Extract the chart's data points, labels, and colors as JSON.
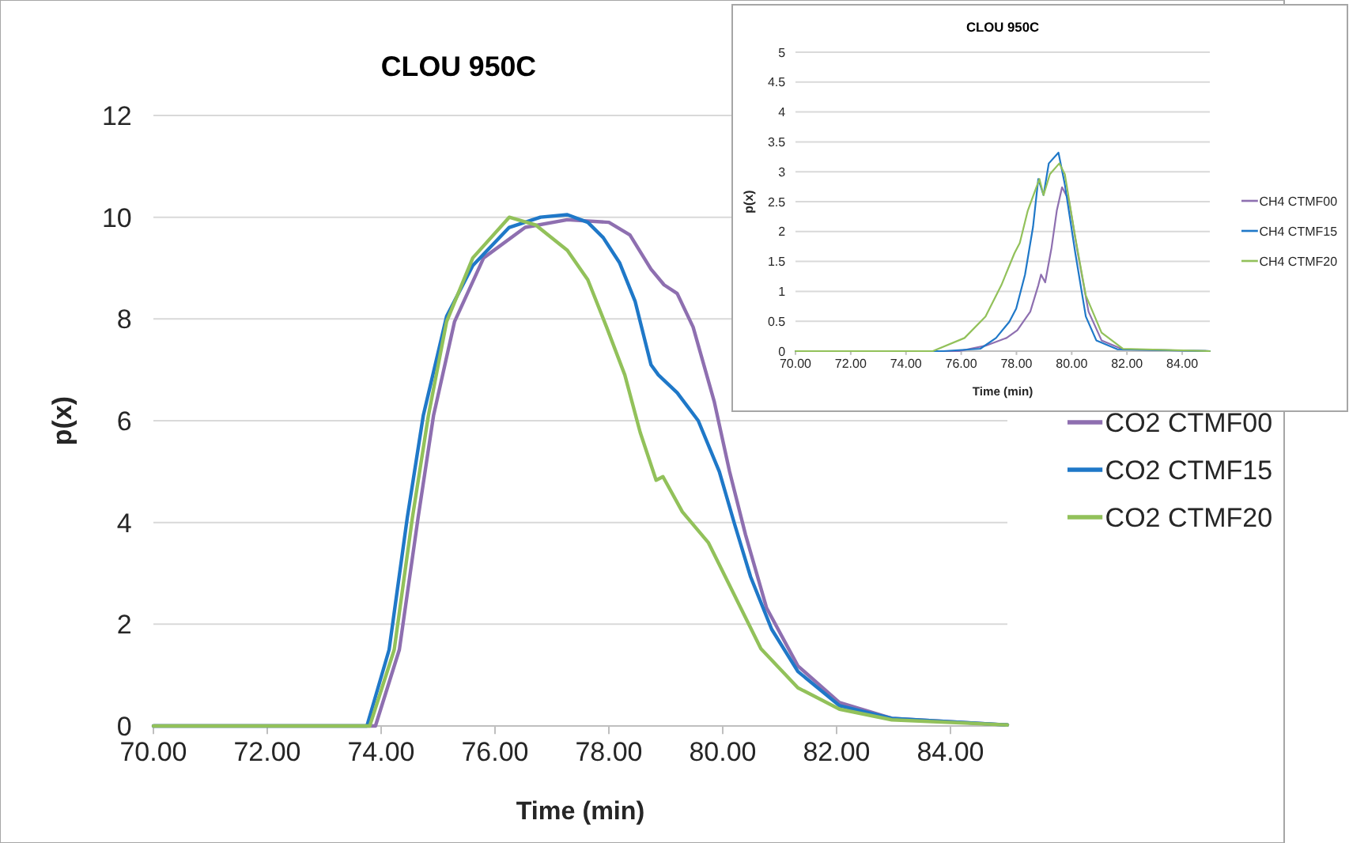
{
  "chart_data": [
    {
      "type": "line",
      "title": "CLOU 950C",
      "xlabel": "Time (min)",
      "ylabel": "p(x)",
      "xlim": [
        70,
        85
      ],
      "xticks": [
        {
          "value": 70,
          "label": "70.00"
        },
        {
          "value": 72,
          "label": "72.00"
        },
        {
          "value": 74,
          "label": "74.00"
        },
        {
          "value": 76,
          "label": "76.00"
        },
        {
          "value": 78,
          "label": "78.00"
        },
        {
          "value": 80,
          "label": "80.00"
        },
        {
          "value": 82,
          "label": "82.00"
        },
        {
          "value": 84,
          "label": "84.00"
        }
      ],
      "ylim": [
        0,
        12
      ],
      "yticks": [
        0,
        2,
        4,
        6,
        8,
        10,
        12
      ],
      "grid": "y",
      "legend": "right",
      "series": [
        {
          "name": "CO2 CTMF00",
          "color": "#8e6fb0",
          "x": [
            70,
            73.9,
            74.32,
            74.65,
            74.92,
            75.29,
            75.8,
            76.53,
            77.27,
            78.0,
            78.37,
            78.74,
            78.97,
            79.2,
            79.48,
            79.85,
            80.12,
            80.4,
            80.77,
            81.32,
            82.05,
            82.97,
            85
          ],
          "values": [
            0,
            0,
            1.5,
            4.1,
            6.1,
            7.95,
            9.2,
            9.8,
            9.95,
            9.9,
            9.65,
            8.98,
            8.67,
            8.5,
            7.84,
            6.38,
            5.0,
            3.76,
            2.32,
            1.18,
            0.46,
            0.15,
            0.02
          ]
        },
        {
          "name": "CO2 CTMF15",
          "color": "#1f78c8",
          "x": [
            70,
            73.75,
            74.14,
            74.46,
            74.74,
            75.15,
            75.61,
            76.25,
            76.8,
            77.27,
            77.63,
            77.9,
            78.19,
            78.46,
            78.74,
            78.87,
            79.2,
            79.57,
            79.94,
            80.21,
            80.49,
            80.86,
            81.32,
            82.05,
            82.97,
            85
          ],
          "values": [
            0,
            0,
            1.5,
            4.1,
            6.1,
            8.05,
            9.05,
            9.8,
            10.0,
            10.05,
            9.9,
            9.6,
            9.1,
            8.35,
            7.1,
            6.9,
            6.55,
            6.0,
            5.0,
            3.96,
            2.93,
            1.9,
            1.07,
            0.4,
            0.15,
            0.02
          ]
        },
        {
          "name": "CO2 CTMF20",
          "color": "#92c15a",
          "x": [
            70,
            73.8,
            74.23,
            74.55,
            74.83,
            75.15,
            75.61,
            76.25,
            76.71,
            77.27,
            77.63,
            77.96,
            78.28,
            78.55,
            78.83,
            78.95,
            79.29,
            79.75,
            80.21,
            80.67,
            81.32,
            82.05,
            82.97,
            85
          ],
          "values": [
            0,
            0,
            1.5,
            4.1,
            6.1,
            7.95,
            9.2,
            10.0,
            9.85,
            9.35,
            8.77,
            7.84,
            6.9,
            5.77,
            4.83,
            4.9,
            4.21,
            3.6,
            2.56,
            1.52,
            0.75,
            0.33,
            0.12,
            0.02
          ]
        }
      ]
    },
    {
      "type": "line",
      "title": "CLOU 950C",
      "xlabel": "Time (min)",
      "ylabel": "p(x)",
      "xlim": [
        70,
        85
      ],
      "xticks": [
        {
          "value": 70,
          "label": "70.00"
        },
        {
          "value": 72,
          "label": "72.00"
        },
        {
          "value": 74,
          "label": "74.00"
        },
        {
          "value": 76,
          "label": "76.00"
        },
        {
          "value": 78,
          "label": "78.00"
        },
        {
          "value": 80,
          "label": "80.00"
        },
        {
          "value": 82,
          "label": "82.00"
        },
        {
          "value": 84,
          "label": "84.00"
        }
      ],
      "ylim": [
        0,
        5
      ],
      "yticks": [
        0,
        0.5,
        1,
        1.5,
        2,
        2.5,
        3,
        3.5,
        4,
        4.5,
        5
      ],
      "grid": "y",
      "legend": "right",
      "series": [
        {
          "name": "CH4 CTMF00",
          "color": "#8e6fb0",
          "x": [
            70,
            75.92,
            76.88,
            77.64,
            78.03,
            78.5,
            78.79,
            78.89,
            79.04,
            79.27,
            79.46,
            79.65,
            79.9,
            80.22,
            80.61,
            81.08,
            81.85,
            85
          ],
          "values": [
            0,
            0,
            0.09,
            0.22,
            0.35,
            0.66,
            1.1,
            1.28,
            1.15,
            1.73,
            2.35,
            2.74,
            2.52,
            1.64,
            0.66,
            0.18,
            0.03,
            0
          ]
        },
        {
          "name": "CH4 CTMF15",
          "color": "#1f78c8",
          "x": [
            70,
            75.35,
            76.69,
            77.26,
            77.74,
            77.99,
            78.31,
            78.6,
            78.79,
            78.98,
            79.17,
            79.52,
            79.75,
            80.13,
            80.51,
            80.89,
            81.66,
            85
          ],
          "values": [
            0,
            0,
            0.04,
            0.22,
            0.49,
            0.71,
            1.28,
            2.08,
            2.88,
            2.61,
            3.14,
            3.32,
            2.79,
            1.64,
            0.58,
            0.18,
            0.03,
            0
          ]
        },
        {
          "name": "CH4 CTMF20",
          "color": "#92c15a",
          "x": [
            70,
            74.97,
            76.12,
            76.88,
            77.45,
            77.93,
            78.12,
            78.41,
            78.83,
            78.98,
            79.21,
            79.55,
            79.75,
            80.13,
            80.51,
            81.08,
            81.85,
            85
          ],
          "values": [
            0,
            0,
            0.22,
            0.58,
            1.1,
            1.64,
            1.81,
            2.35,
            2.88,
            2.61,
            2.96,
            3.14,
            2.96,
            1.9,
            0.93,
            0.31,
            0.04,
            0
          ]
        }
      ]
    }
  ]
}
